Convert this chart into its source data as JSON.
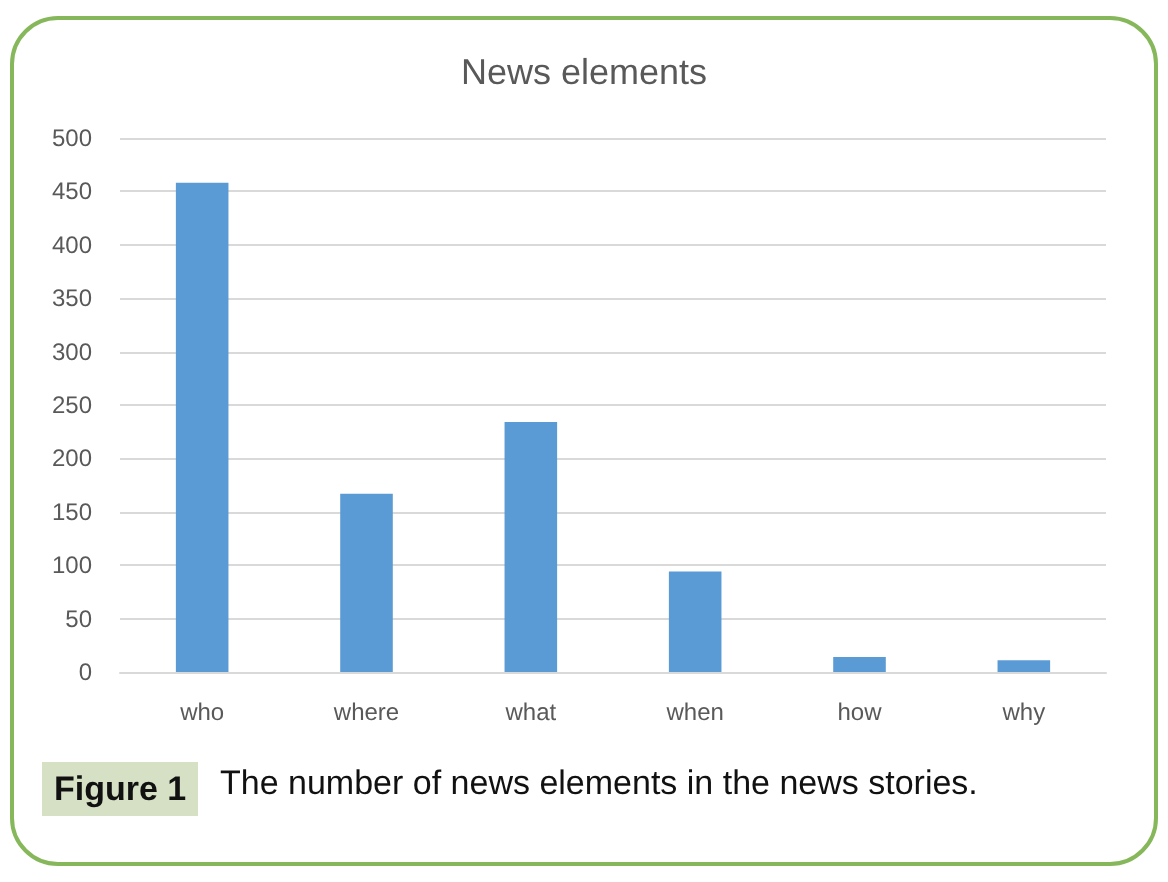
{
  "chart_data": {
    "type": "bar",
    "title": "News elements",
    "categories": [
      "who",
      "where",
      "what",
      "when",
      "how",
      "why"
    ],
    "values": [
      458,
      167,
      234,
      94,
      14,
      11
    ],
    "color": "#5b9bd5",
    "ylim": [
      0,
      500
    ],
    "yticks": [
      0,
      50,
      100,
      150,
      200,
      250,
      300,
      350,
      400,
      450,
      500
    ],
    "grid": "y",
    "annotations": [
      "Figure 1",
      "The number of news elements in the news stories."
    ]
  }
}
